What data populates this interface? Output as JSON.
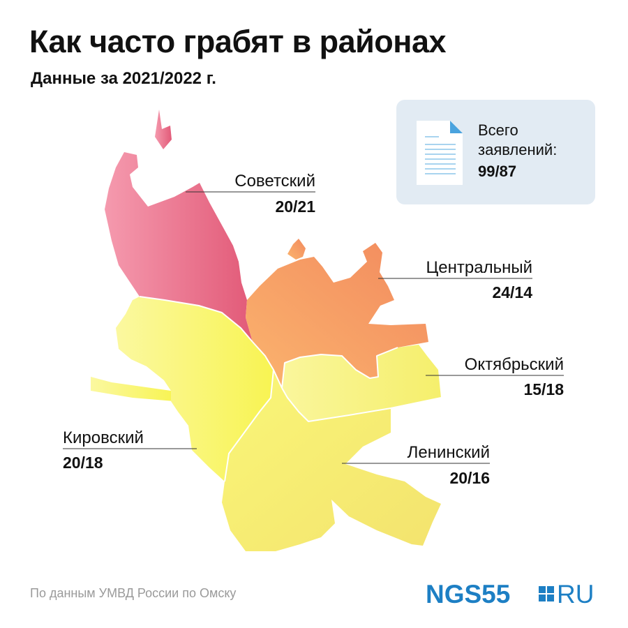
{
  "header": {
    "title": "Как часто грабят в районах",
    "subtitle": "Данные за 2021/2022 г."
  },
  "total": {
    "label": "Всего заявлений:",
    "value": "99/87",
    "icon": "document-icon"
  },
  "districts": [
    {
      "name": "Советский",
      "value": "20/21",
      "value_2021": 20,
      "value_2022": 21,
      "color": "#e25a78"
    },
    {
      "name": "Центральный",
      "value": "24/14",
      "value_2021": 24,
      "value_2022": 14,
      "color": "#f49a60"
    },
    {
      "name": "Октябрьский",
      "value": "15/18",
      "value_2021": 15,
      "value_2022": 18,
      "color": "#f7f07a"
    },
    {
      "name": "Кировский",
      "value": "20/18",
      "value_2021": 20,
      "value_2022": 18,
      "color": "#f8f55a"
    },
    {
      "name": "Ленинский",
      "value": "20/16",
      "value_2021": 20,
      "value_2022": 16,
      "color": "#f6ec6a"
    }
  ],
  "footer": {
    "source": "По данным УМВД России по Омску",
    "logo_text": "NGS55",
    "logo_suffix": "RU",
    "logo_color": "#1d7fc4"
  }
}
